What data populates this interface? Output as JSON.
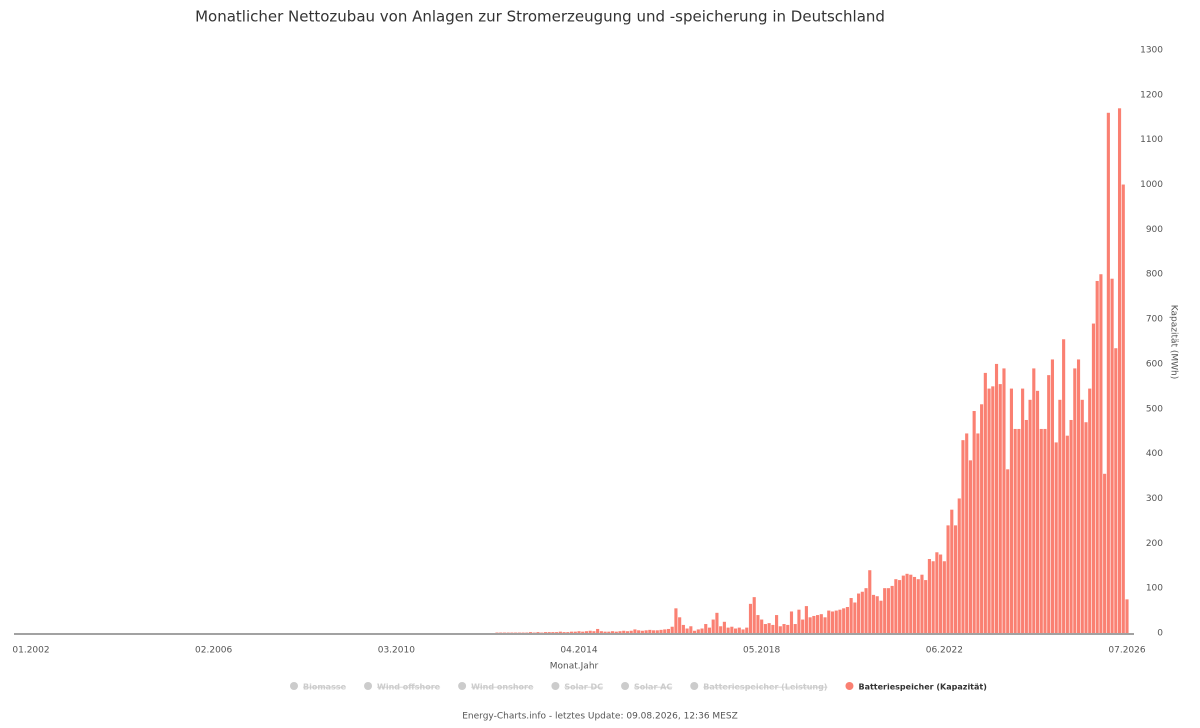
{
  "chart_data": {
    "type": "bar",
    "title": "Monatlicher Nettozubau von Anlagen zur Stromerzeugung und -speicherung in Deutschland",
    "x_label": "Monat.Jahr",
    "y_label": "Kapazität (MWh)",
    "footer": "Energy-Charts.info - letztes Update: 09.08.2026, 12:36 MESZ",
    "categories": [
      "01.2002",
      null,
      null,
      null,
      null,
      null,
      null,
      null,
      null,
      null,
      null,
      null,
      null,
      null,
      null,
      null,
      null,
      null,
      null,
      null,
      null,
      null,
      null,
      null,
      null,
      null,
      null,
      null,
      null,
      null,
      null,
      null,
      null,
      null,
      null,
      null,
      null,
      null,
      null,
      null,
      null,
      null,
      null,
      null,
      null,
      null,
      null,
      null,
      null,
      "02.2006",
      null,
      null,
      null,
      null,
      null,
      null,
      null,
      null,
      null,
      null,
      null,
      null,
      null,
      null,
      null,
      null,
      null,
      null,
      null,
      null,
      null,
      null,
      null,
      null,
      null,
      null,
      null,
      null,
      null,
      null,
      null,
      null,
      null,
      null,
      null,
      null,
      null,
      null,
      null,
      null,
      null,
      null,
      null,
      null,
      null,
      null,
      null,
      null,
      "03.2010",
      null,
      null,
      null,
      null,
      null,
      null,
      null,
      null,
      null,
      null,
      null,
      null,
      null,
      null,
      null,
      null,
      null,
      null,
      null,
      null,
      null,
      null,
      null,
      null,
      null,
      null,
      null,
      null,
      null,
      null,
      null,
      null,
      null,
      null,
      null,
      null,
      null,
      null,
      null,
      null,
      null,
      null,
      null,
      null,
      null,
      null,
      null,
      null,
      "04.2014",
      null,
      null,
      null,
      null,
      null,
      null,
      null,
      null,
      null,
      null,
      null,
      null,
      null,
      null,
      null,
      null,
      null,
      null,
      null,
      null,
      null,
      null,
      null,
      null,
      null,
      null,
      null,
      null,
      null,
      null,
      null,
      null,
      null,
      null,
      null,
      null,
      null,
      null,
      null,
      null,
      null,
      null,
      null,
      null,
      null,
      null,
      null,
      null,
      "05.2018",
      null,
      null,
      null,
      null,
      null,
      null,
      null,
      null,
      null,
      null,
      null,
      null,
      null,
      null,
      null,
      null,
      null,
      null,
      null,
      null,
      null,
      null,
      null,
      null,
      null,
      null,
      null,
      null,
      null,
      null,
      null,
      null,
      null,
      null,
      null,
      null,
      null,
      null,
      null,
      null,
      null,
      null,
      null,
      null,
      null,
      null,
      null,
      null,
      "06.2022",
      null,
      null,
      null,
      null,
      null,
      null,
      null,
      null,
      null,
      null,
      null,
      null,
      null,
      null,
      null,
      null,
      null,
      null,
      null,
      null,
      null,
      null,
      null,
      null,
      null,
      null,
      null,
      null,
      null,
      null,
      null,
      null,
      null,
      null,
      null,
      null,
      null,
      null,
      null,
      null,
      null,
      null,
      null,
      null,
      null,
      null,
      null,
      null,
      "07.2026"
    ],
    "series": [
      {
        "name": "Batteriespeicher (Kapazität)",
        "color": "#fa8072",
        "values": [
          0,
          0,
          0,
          0,
          0,
          0,
          0,
          0,
          0,
          0,
          0,
          0,
          0,
          0,
          0,
          0,
          0,
          0,
          0,
          0,
          0,
          0,
          0,
          0,
          0,
          0,
          0,
          0,
          0,
          0,
          0,
          0,
          0,
          0,
          0,
          0,
          0,
          0,
          0,
          0,
          0,
          0,
          0,
          0,
          0,
          0,
          0,
          0,
          0,
          0,
          0,
          0,
          0,
          0,
          0,
          0,
          0,
          0,
          0,
          0,
          0,
          0,
          0,
          0,
          0,
          0,
          0,
          0,
          0,
          0,
          0,
          0,
          0,
          0,
          0,
          0,
          0,
          0,
          0,
          0,
          0,
          0,
          0,
          0,
          0,
          0,
          0,
          0,
          0,
          0,
          0,
          0,
          0,
          0,
          0,
          0,
          0,
          0,
          0,
          0,
          0,
          0,
          0,
          0,
          0,
          0,
          0,
          0,
          0,
          0,
          0,
          0,
          0,
          0,
          0,
          0,
          0,
          0,
          0,
          0,
          0,
          0,
          0,
          0,
          0,
          1,
          1,
          1,
          1,
          1,
          1,
          1,
          1,
          1,
          2,
          1,
          2,
          1,
          2,
          2,
          2,
          2,
          3,
          2,
          2,
          3,
          3,
          4,
          3,
          4,
          5,
          4,
          9,
          4,
          3,
          3,
          4,
          3,
          4,
          5,
          4,
          5,
          8,
          6,
          5,
          6,
          7,
          6,
          6,
          7,
          8,
          9,
          14,
          55,
          35,
          18,
          10,
          15,
          5,
          8,
          10,
          20,
          12,
          30,
          45,
          15,
          25,
          12,
          14,
          10,
          12,
          8,
          12,
          65,
          80,
          40,
          30,
          20,
          22,
          18,
          40,
          15,
          20,
          18,
          48,
          20,
          52,
          30,
          60,
          35,
          38,
          40,
          42,
          35,
          50,
          48,
          50,
          52,
          55,
          58,
          78,
          68,
          88,
          92,
          100,
          140,
          85,
          82,
          72,
          100,
          100,
          105,
          120,
          118,
          128,
          132,
          130,
          125,
          120,
          130,
          118,
          165,
          160,
          180,
          175,
          160,
          240,
          275,
          240,
          300,
          430,
          445,
          385,
          495,
          445,
          510,
          580,
          545,
          550,
          600,
          555,
          590,
          365,
          545,
          455,
          455,
          545,
          475,
          520,
          590,
          540,
          455,
          455,
          575,
          610,
          425,
          520,
          655,
          440,
          475,
          590,
          610,
          520,
          470,
          545,
          690,
          785,
          800,
          355,
          1160,
          790,
          635,
          1170,
          1000,
          75
        ]
      }
    ],
    "hidden_series": [
      "Biomasse",
      "Wind offshore",
      "Wind onshore",
      "Solar DC",
      "Solar AC",
      "Batteriespeicher (Leistung)"
    ],
    "ylim": [
      0,
      1300
    ],
    "yticks": [
      0,
      100,
      200,
      300,
      400,
      500,
      600,
      700,
      800,
      900,
      1000,
      1100,
      1200,
      1300
    ],
    "grid": false
  }
}
